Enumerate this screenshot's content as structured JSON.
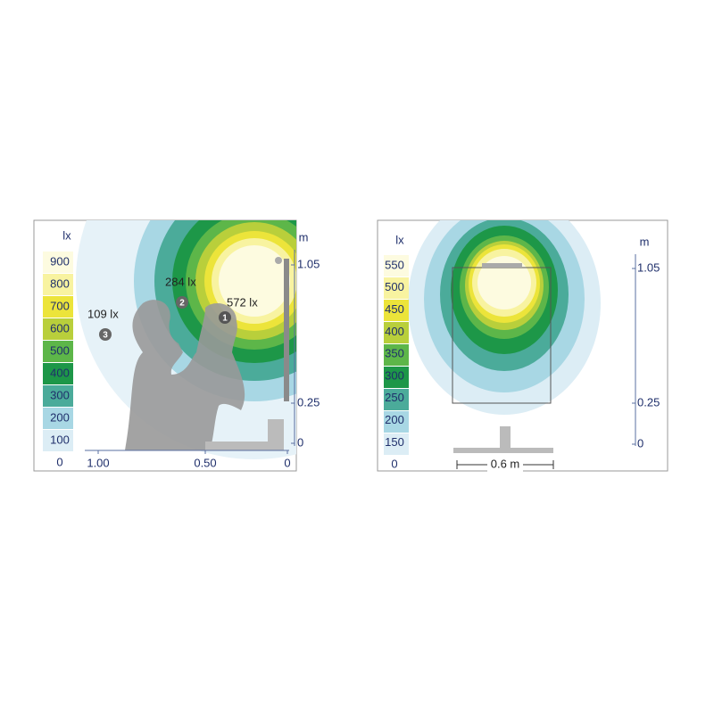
{
  "left_panel": {
    "legend_unit": "lx",
    "legend_labels": [
      "900",
      "800",
      "700",
      "600",
      "500",
      "400",
      "300",
      "200",
      "100",
      "0"
    ],
    "axis_unit": "m",
    "vertical_ticks": [
      "1.05",
      "0.25",
      "0"
    ],
    "horizontal_ticks": [
      "1.00",
      "0.50",
      "0"
    ],
    "points": [
      {
        "number": "1",
        "label": "572 lx"
      },
      {
        "number": "2",
        "label": "284 lx"
      },
      {
        "number": "3",
        "label": "109 lx"
      }
    ]
  },
  "right_panel": {
    "legend_unit": "lx",
    "legend_labels": [
      "550",
      "500",
      "450",
      "400",
      "350",
      "300",
      "250",
      "200",
      "150",
      "0"
    ],
    "axis_unit": "m",
    "vertical_ticks": [
      "1.05",
      "0.25",
      "0"
    ],
    "width_label": "0.6 m"
  }
}
